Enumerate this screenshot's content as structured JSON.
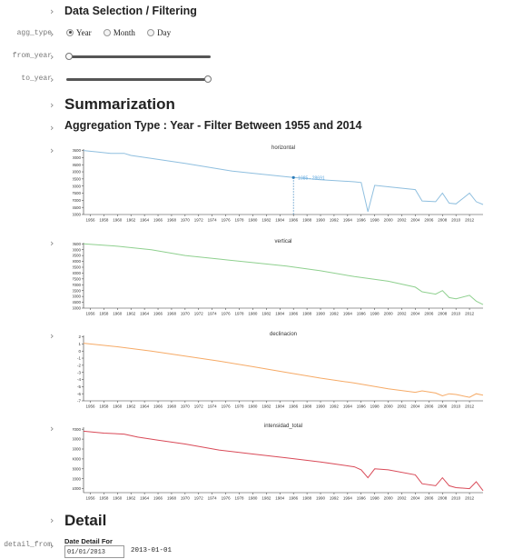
{
  "section_filter": {
    "title": "Data Selection / Filtering"
  },
  "agg_type": {
    "label": "agg_type",
    "options": [
      "Year",
      "Month",
      "Day"
    ],
    "selected": "Year"
  },
  "from_year": {
    "label": "from_year",
    "value_fraction": 0.0
  },
  "to_year": {
    "label": "to_year",
    "value_fraction": 1.0
  },
  "summary": {
    "title": "Summarization",
    "subtitle": "Aggregation Type : Year - Filter Between 1955 and 2014"
  },
  "detail": {
    "title": "Detail",
    "row_label": "detail_from",
    "input_label": "Date Detail For",
    "input_value": "01/01/2013",
    "date_output": "2013-01-01"
  },
  "colors": {
    "horizontal": "#8fbfdf",
    "vertical": "#8fd08f",
    "declinacion": "#f6aa66",
    "intensidad_total": "#d94a58"
  },
  "chart_data": [
    {
      "type": "line",
      "title": "horizontal",
      "xlim": [
        1955,
        2014
      ],
      "x_ticks": [
        "1956",
        "1958",
        "1960",
        "1962",
        "1964",
        "1966",
        "1968",
        "1970",
        "1972",
        "1974",
        "1976",
        "1978",
        "1980",
        "1982",
        "1984",
        "1986",
        "1988",
        "1990",
        "1992",
        "1994",
        "1996",
        "1998",
        "2000",
        "2002",
        "2004",
        "2006",
        "2008",
        "2010",
        "2012"
      ],
      "ylim": [
        26000,
        30600
      ],
      "y_ticks": [
        "26000",
        "26500",
        "27000",
        "27500",
        "28000",
        "28500",
        "29000",
        "29500",
        "30000",
        "30500"
      ],
      "x": [
        1955,
        1957,
        1959,
        1961,
        1962,
        1965,
        1970,
        1975,
        1977,
        1980,
        1985,
        1986,
        1990,
        1995,
        1996,
        1997,
        1998,
        2000,
        2004,
        2005,
        2007,
        2008,
        2009,
        2010,
        2012,
        2013,
        2014
      ],
      "values": [
        30500,
        30400,
        30300,
        30300,
        30150,
        29950,
        29600,
        29200,
        29050,
        28900,
        28650,
        28600,
        28450,
        28300,
        28250,
        26200,
        28050,
        27950,
        27750,
        26950,
        26900,
        27500,
        26800,
        26750,
        27500,
        26900,
        26700
      ],
      "tooltip": {
        "year": 1986,
        "text": "1985 - 28691"
      }
    },
    {
      "type": "line",
      "title": "vertical",
      "xlim": [
        1955,
        2014
      ],
      "x_ticks": [
        "1956",
        "1958",
        "1960",
        "1962",
        "1964",
        "1966",
        "1968",
        "1970",
        "1972",
        "1974",
        "1976",
        "1978",
        "1980",
        "1982",
        "1984",
        "1986",
        "1988",
        "1990",
        "1992",
        "1994",
        "1996",
        "1998",
        "2000",
        "2002",
        "2004",
        "2006",
        "2008",
        "2010",
        "2012"
      ],
      "ylim": [
        15000,
        20600
      ],
      "y_ticks": [
        "15000",
        "15500",
        "16000",
        "16500",
        "17000",
        "17500",
        "18000",
        "18500",
        "19000",
        "19500",
        "20000",
        "20500"
      ],
      "x": [
        1955,
        1960,
        1965,
        1970,
        1975,
        1980,
        1985,
        1990,
        1995,
        2000,
        2004,
        2005,
        2007,
        2008,
        2009,
        2010,
        2012,
        2013,
        2014
      ],
      "values": [
        20500,
        20300,
        20000,
        19500,
        19200,
        18900,
        18600,
        18200,
        17700,
        17300,
        16800,
        16400,
        16200,
        16500,
        15900,
        15800,
        16100,
        15600,
        15300
      ]
    },
    {
      "type": "line",
      "title": "declinacion",
      "xlim": [
        1955,
        2014
      ],
      "x_ticks": [
        "1956",
        "1958",
        "1960",
        "1962",
        "1964",
        "1966",
        "1968",
        "1970",
        "1972",
        "1974",
        "1976",
        "1978",
        "1980",
        "1982",
        "1984",
        "1986",
        "1988",
        "1990",
        "1992",
        "1994",
        "1996",
        "1998",
        "2000",
        "2002",
        "2004",
        "2006",
        "2008",
        "2010",
        "2012"
      ],
      "ylim": [
        -7,
        2.2
      ],
      "y_ticks": [
        "-7",
        "-6",
        "-5",
        "-4",
        "-3",
        "-2",
        "-1",
        "0",
        "1",
        "2"
      ],
      "x": [
        1955,
        1960,
        1965,
        1970,
        1975,
        1980,
        1985,
        1990,
        1995,
        2000,
        2004,
        2005,
        2007,
        2008,
        2009,
        2010,
        2012,
        2013,
        2014
      ],
      "values": [
        1.1,
        0.6,
        0.0,
        -0.7,
        -1.4,
        -2.2,
        -3.0,
        -3.8,
        -4.5,
        -5.3,
        -5.8,
        -5.6,
        -5.9,
        -6.3,
        -6.0,
        -6.1,
        -6.5,
        -6.0,
        -6.2
      ]
    },
    {
      "type": "line",
      "title": "intensidad_total",
      "xlim": [
        1955,
        2014
      ],
      "x_ticks": [
        "1956",
        "1958",
        "1960",
        "1962",
        "1964",
        "1966",
        "1968",
        "1970",
        "1972",
        "1974",
        "1976",
        "1978",
        "1980",
        "1982",
        "1984",
        "1986",
        "1988",
        "1990",
        "1992",
        "1994",
        "1996",
        "1998",
        "2000",
        "2002",
        "2004",
        "2006",
        "2008",
        "2010",
        "2012"
      ],
      "ylim": [
        30600,
        37200
      ],
      "y_ticks": [
        "31000",
        "32000",
        "33000",
        "34000",
        "35000",
        "36000",
        "37000"
      ],
      "x": [
        1955,
        1958,
        1961,
        1963,
        1966,
        1970,
        1975,
        1980,
        1985,
        1990,
        1995,
        1996,
        1997,
        1998,
        2000,
        2004,
        2005,
        2007,
        2008,
        2009,
        2010,
        2012,
        2013,
        2014
      ],
      "values": [
        36800,
        36600,
        36500,
        36200,
        35900,
        35500,
        34900,
        34500,
        34100,
        33700,
        33200,
        32900,
        32100,
        33000,
        32900,
        32400,
        31500,
        31300,
        32100,
        31300,
        31100,
        31000,
        31700,
        30800
      ]
    }
  ]
}
